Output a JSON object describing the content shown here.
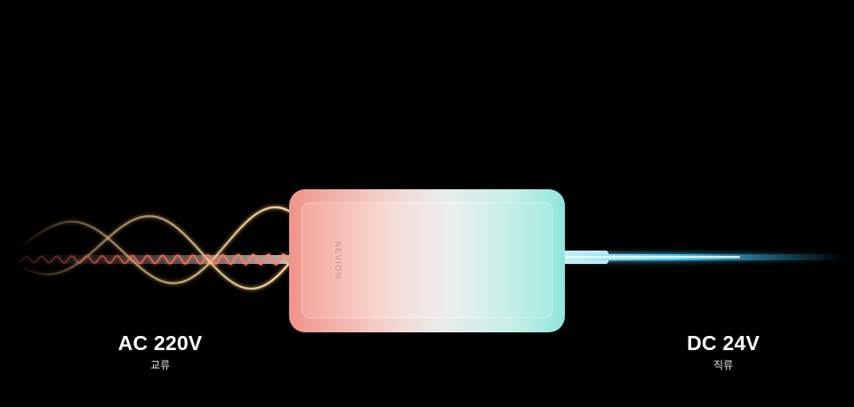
{
  "brand": {
    "logo_text": "NEVION"
  },
  "input": {
    "voltage_label": "AC 220V",
    "type_label": "교류"
  },
  "output": {
    "voltage_label": "DC 24V",
    "type_label": "직류"
  },
  "colors": {
    "background": "#000000",
    "adapter_warm": "#f09488",
    "adapter_mid": "#e9ecea",
    "adapter_cool": "#8fe6dc",
    "wave_gold": "#f5c98a",
    "wave_red": "#ff6a52",
    "dc_beam": "#4fd0ff"
  },
  "icons": {
    "ac_wave": "sine-wave-icon",
    "dc_beam": "straight-line-icon"
  }
}
